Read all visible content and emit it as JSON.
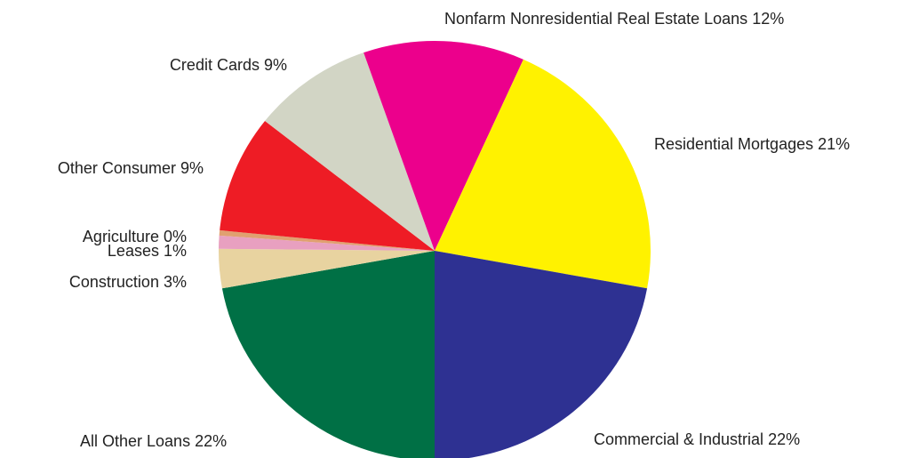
{
  "chart_data": {
    "type": "pie",
    "categories": [
      "All Other Loans",
      "Construction",
      "Leases",
      "Agriculture",
      "Other Consumer",
      "Credit Cards",
      "Nonfarm Nonresidential Real Estate Loans",
      "Residential Mortgages",
      "Commercial & Industrial"
    ],
    "values": [
      22,
      3,
      1,
      0.4,
      9,
      9,
      12,
      21,
      22
    ],
    "value_labels": [
      "22%",
      "3%",
      "1%",
      "0%",
      "9%",
      "9%",
      "12%",
      "21%",
      "22%"
    ],
    "colors": [
      "#007045",
      "#e8d3a0",
      "#e8a0c0",
      "#e0a070",
      "#ee1c25",
      "#d2d5c5",
      "#ec008c",
      "#fff200",
      "#2e3192"
    ]
  }
}
